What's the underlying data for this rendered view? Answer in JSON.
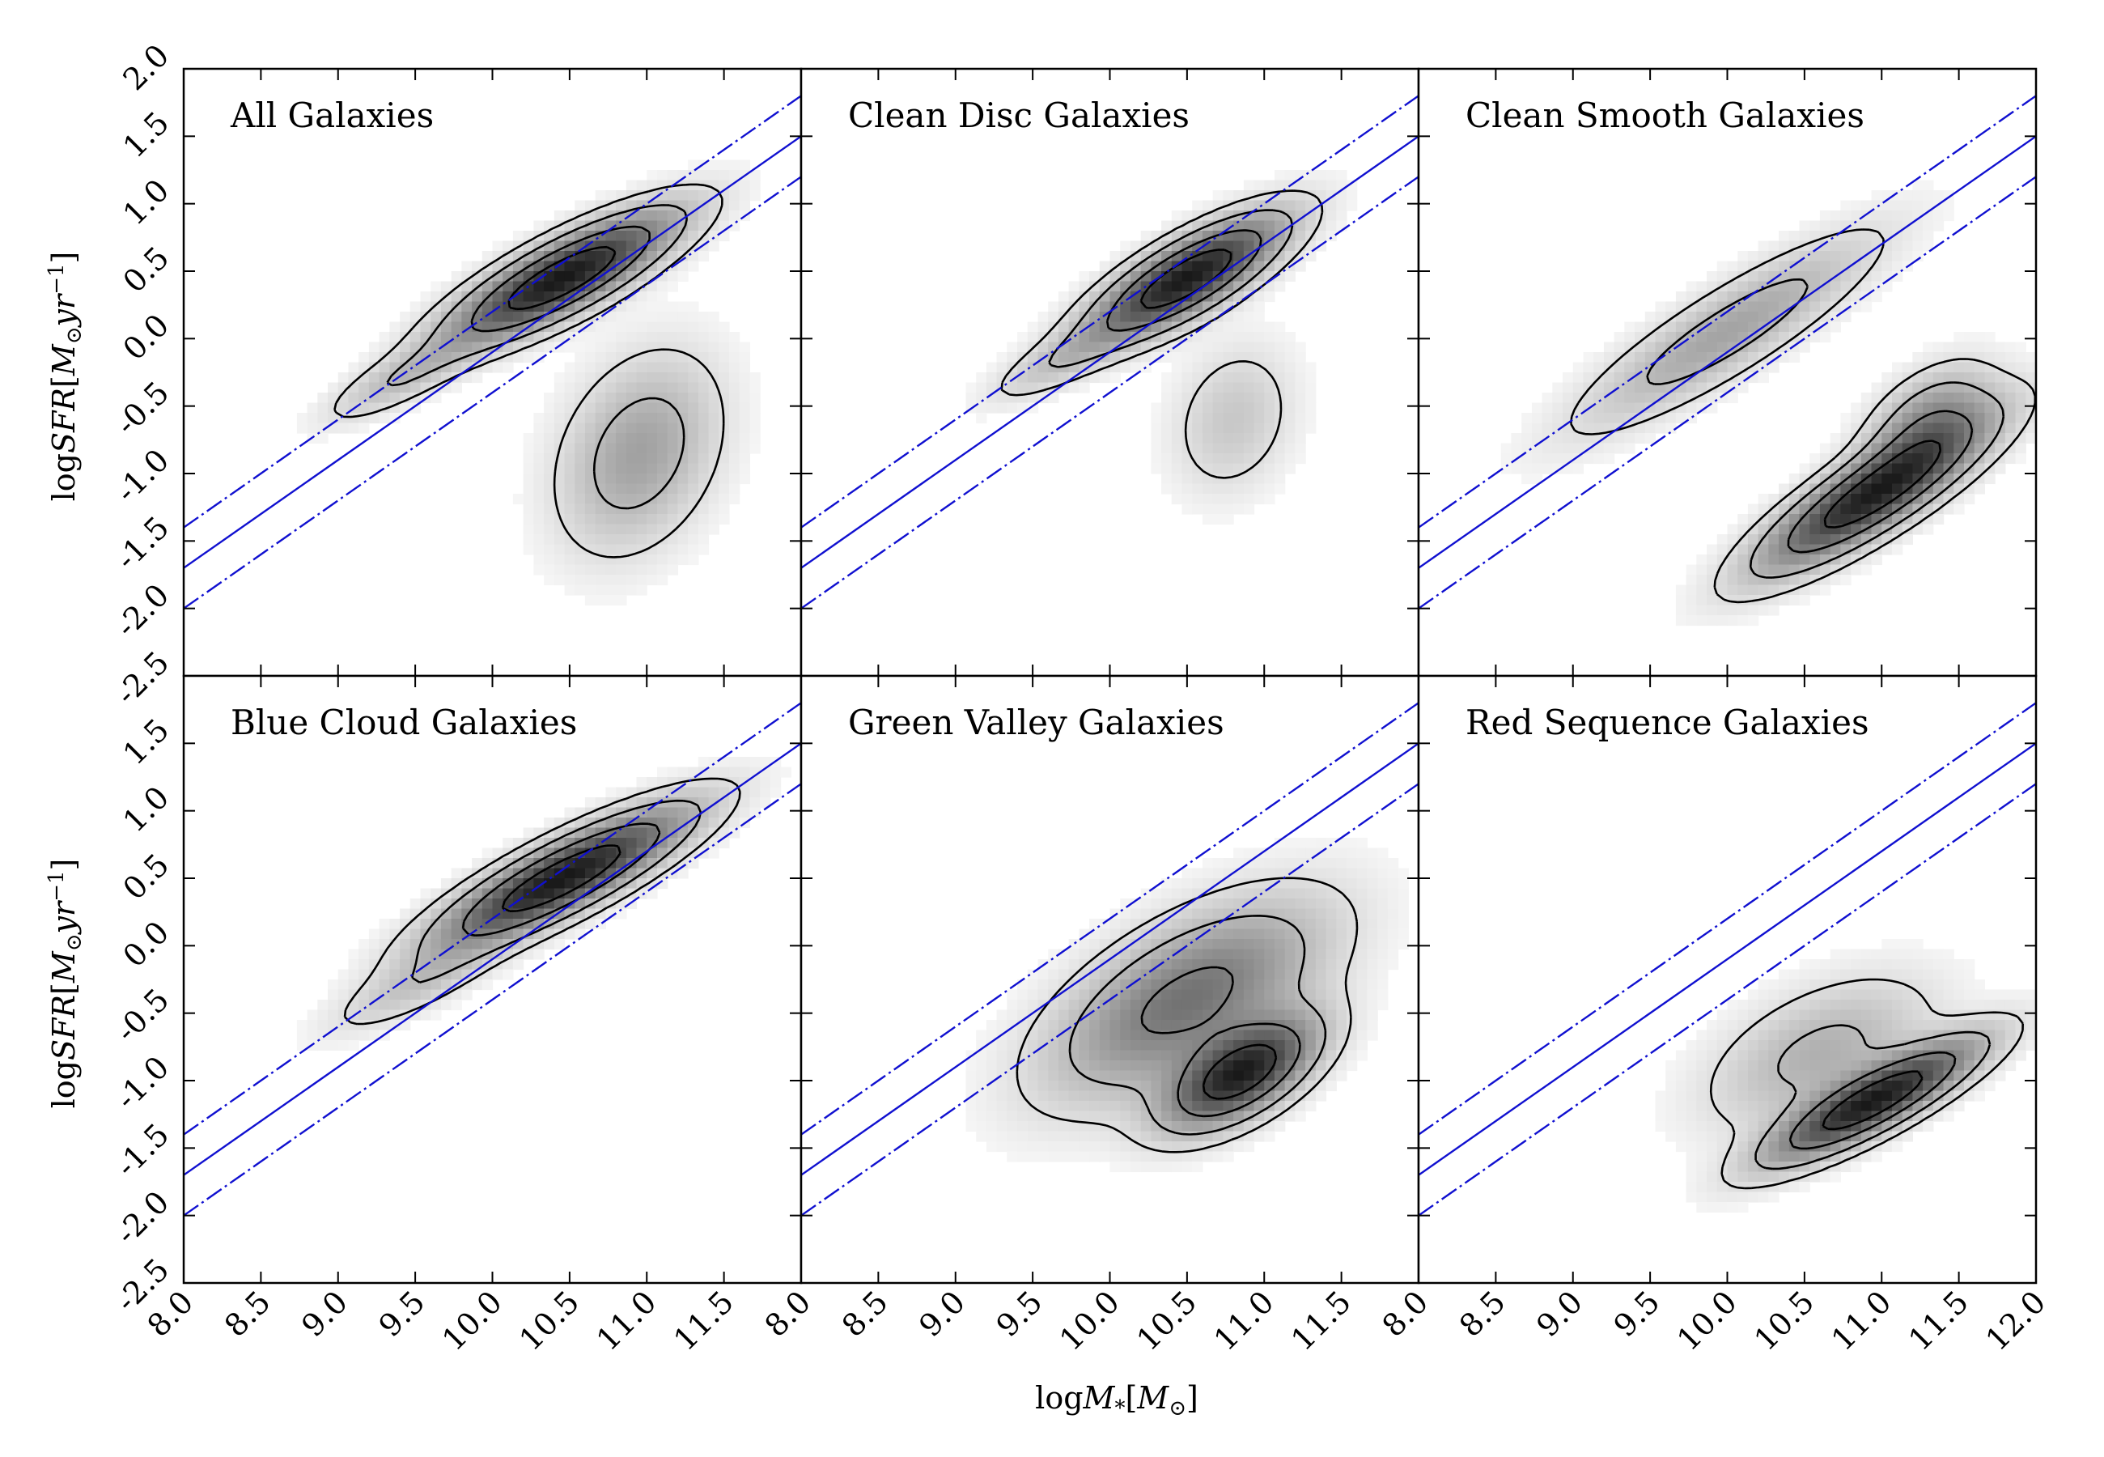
{
  "chart_data": {
    "type": "heatmap",
    "layout": "2x3 grid of panels, shared axes",
    "xlabel": "logM*[M⊙]",
    "xlabel_parts": {
      "base": "log",
      "var": "M",
      "sub": "*",
      "bracket_open": "[",
      "unit": "M",
      "unit_sub": "⊙",
      "bracket_close": "]"
    },
    "ylabel": "logSFR[M⊙yr−1]",
    "ylabel_parts": {
      "base": "log",
      "var": "SFR",
      "bracket_open": "[",
      "unit": "M",
      "unit_sub": "⊙",
      "unit2": "yr",
      "unit_sup": "−1",
      "bracket_close": "]"
    },
    "xlim": [
      8.0,
      12.0
    ],
    "ylim": [
      -2.5,
      2.0
    ],
    "x_ticks": [
      8.0,
      8.5,
      9.0,
      9.5,
      10.0,
      10.5,
      11.0,
      11.5,
      12.0
    ],
    "x_tick_labels_left_middle": [
      "8.0",
      "8.5",
      "9.0",
      "9.5",
      "10.0",
      "10.5",
      "11.0",
      "11.5"
    ],
    "x_tick_labels_right": [
      "8.0",
      "8.5",
      "9.0",
      "9.5",
      "10.0",
      "10.5",
      "11.0",
      "11.5",
      "12.0"
    ],
    "y_ticks": [
      -2.5,
      -2.0,
      -1.5,
      -1.0,
      -0.5,
      0.0,
      0.5,
      1.0,
      1.5,
      2.0
    ],
    "y_tick_labels_top": [
      "-2.5",
      "-2.0",
      "-1.5",
      "-1.0",
      "-0.5",
      "0.0",
      "0.5",
      "1.0",
      "1.5",
      "2.0"
    ],
    "y_tick_labels_bottom": [
      "-2.5",
      "-2.0",
      "-1.5",
      "-1.0",
      "-0.5",
      "0.0",
      "0.5",
      "1.0",
      "1.5"
    ],
    "main_sequence": {
      "slope": 0.8,
      "intercept_at_8": -1.7,
      "offsets": [
        -0.3,
        0.0,
        0.3
      ],
      "styles": [
        "dashdot",
        "solid",
        "dashdot"
      ],
      "color": "#1010d0"
    },
    "colors": {
      "contour": "#000000",
      "density_max": "#1a1a1a",
      "background": "#ffffff"
    },
    "panels": [
      {
        "title": "All Galaxies",
        "blobs": [
          {
            "x": 10.45,
            "y": 0.45,
            "sx": 0.45,
            "sy": 0.3,
            "rho": 0.82,
            "w": 1.0
          },
          {
            "x": 10.95,
            "y": -0.85,
            "sx": 0.32,
            "sy": 0.45,
            "rho": 0.3,
            "w": 0.3
          },
          {
            "x": 9.4,
            "y": -0.3,
            "sx": 0.3,
            "sy": 0.2,
            "rho": 0.8,
            "w": 0.18
          }
        ]
      },
      {
        "title": "Clean Disc Galaxies",
        "blobs": [
          {
            "x": 10.5,
            "y": 0.45,
            "sx": 0.38,
            "sy": 0.28,
            "rho": 0.78,
            "w": 1.0
          },
          {
            "x": 10.8,
            "y": -0.6,
            "sx": 0.25,
            "sy": 0.35,
            "rho": 0.2,
            "w": 0.15
          },
          {
            "x": 9.7,
            "y": -0.15,
            "sx": 0.3,
            "sy": 0.2,
            "rho": 0.8,
            "w": 0.16
          }
        ]
      },
      {
        "title": "Clean Smooth Galaxies",
        "blobs": [
          {
            "x": 10.95,
            "y": -1.15,
            "sx": 0.45,
            "sy": 0.35,
            "rho": 0.85,
            "w": 1.0
          },
          {
            "x": 10.0,
            "y": 0.05,
            "sx": 0.6,
            "sy": 0.45,
            "rho": 0.88,
            "w": 0.3
          },
          {
            "x": 11.3,
            "y": -0.6,
            "sx": 0.25,
            "sy": 0.25,
            "rho": 0.5,
            "w": 0.35
          }
        ]
      },
      {
        "title": "Blue Cloud Galaxies",
        "blobs": [
          {
            "x": 10.45,
            "y": 0.5,
            "sx": 0.5,
            "sy": 0.32,
            "rho": 0.85,
            "w": 1.0
          },
          {
            "x": 9.5,
            "y": -0.3,
            "sx": 0.35,
            "sy": 0.22,
            "rho": 0.8,
            "w": 0.15
          }
        ]
      },
      {
        "title": "Green Valley Galaxies",
        "blobs": [
          {
            "x": 10.85,
            "y": -0.95,
            "sx": 0.3,
            "sy": 0.25,
            "rho": 0.6,
            "w": 1.0
          },
          {
            "x": 10.5,
            "y": -0.4,
            "sx": 0.55,
            "sy": 0.45,
            "rho": 0.6,
            "w": 0.55
          }
        ]
      },
      {
        "title": "Red Sequence Galaxies",
        "blobs": [
          {
            "x": 10.95,
            "y": -1.15,
            "sx": 0.42,
            "sy": 0.28,
            "rho": 0.85,
            "w": 1.0
          },
          {
            "x": 10.6,
            "y": -0.8,
            "sx": 0.45,
            "sy": 0.35,
            "rho": 0.5,
            "w": 0.25
          }
        ]
      }
    ],
    "contour_levels": [
      0.07,
      0.2,
      0.45,
      0.75
    ]
  }
}
